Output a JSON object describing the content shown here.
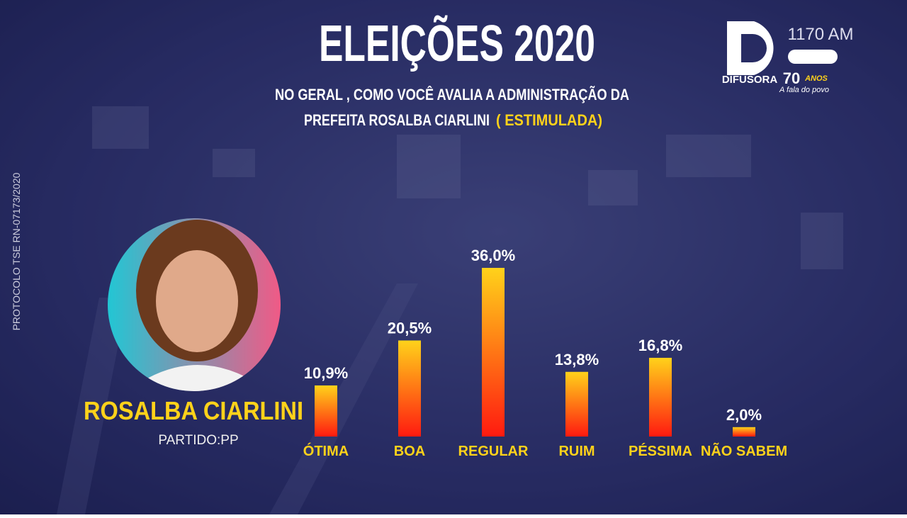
{
  "chart_data": {
    "type": "bar",
    "title": "ELEIÇÕES 2020",
    "subtitle": [
      "NO GERAL , COMO VOCÊ AVALIA A ADMINISTRAÇÃO DA",
      "PREFEITA ROSALBA CIARLINI"
    ],
    "subtitle_note": "( ESTIMULADA)",
    "candidate": "ROSALBA CIARLINI",
    "party": "PARTIDO:PP",
    "protocol": "PROTOCOLO TSE RN-07173/2020",
    "logo": {
      "frequency": "1170 AM",
      "name": "DIFUSORA",
      "years": "70",
      "years_word": "ANOS",
      "slogan": "A fala do povo"
    },
    "categories": [
      "ÓTIMA",
      "BOA",
      "REGULAR",
      "RUIM",
      "PÉSSIMA",
      "NÃO SABEM"
    ],
    "values": [
      10.9,
      20.5,
      36.0,
      13.8,
      16.8,
      2.0
    ],
    "value_labels": [
      "10,9%",
      "20,5%",
      "36,0%",
      "13,8%",
      "16,8%",
      "2,0%"
    ],
    "color": [
      "#ffd21a",
      "#ff1a10"
    ]
  }
}
